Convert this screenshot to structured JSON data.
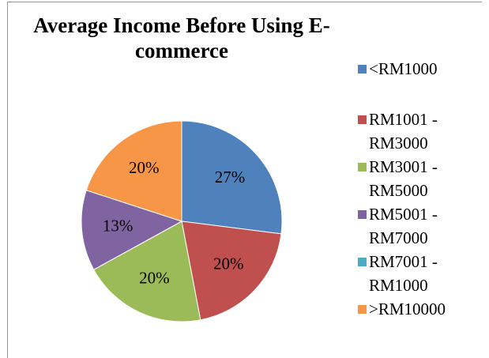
{
  "chart_data": {
    "type": "pie",
    "title": "Average Income Before Using E-commerce",
    "categories": [
      "<RM1000",
      "RM1001 - RM3000",
      "RM3001 - RM5000",
      "RM5001 - RM7000",
      "RM7001 - RM1000",
      ">RM10000"
    ],
    "values": [
      27,
      20,
      20,
      13,
      0,
      20
    ],
    "value_labels": [
      "27%",
      "20%",
      "20%",
      "13%",
      null,
      "20%"
    ],
    "colors": [
      "#4f81bd",
      "#c0504d",
      "#9bbb59",
      "#8064a2",
      "#4bacc6",
      "#f79646"
    ],
    "legend": "right"
  }
}
